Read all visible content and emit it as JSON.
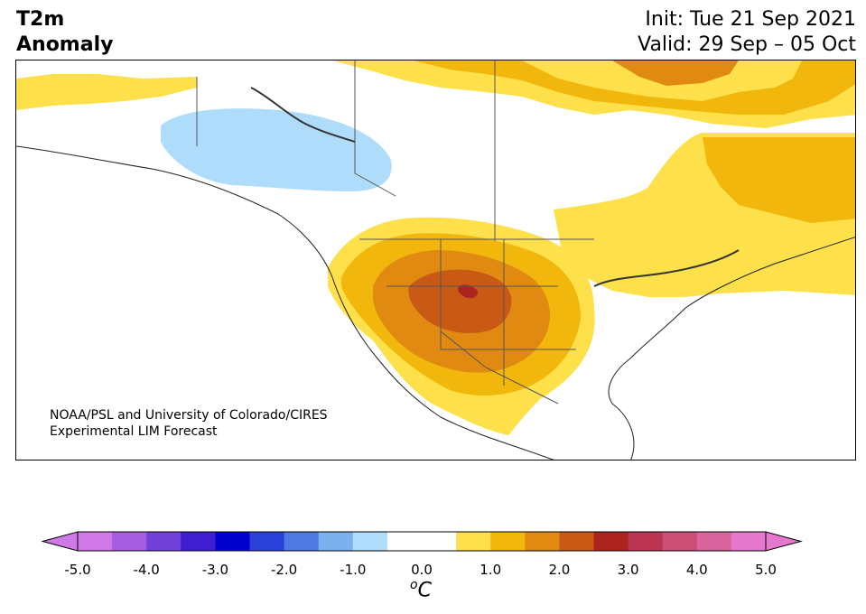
{
  "title_left": "T2m\nAnomaly",
  "init_line": "Init: Tue 21 Sep 2021",
  "valid_line": "Valid: 29 Sep – 05 Oct",
  "credit_line1": "NOAA/PSL and University of Colorado/CIRES",
  "credit_line2": "Experimental LIM Forecast",
  "colorbar": {
    "unit_base": "C",
    "unit_sup": "o",
    "ticks": [
      "-5.0",
      "-4.0",
      "-3.0",
      "-2.0",
      "-1.0",
      "0.0",
      "1.0",
      "2.0",
      "3.0",
      "4.0",
      "5.0"
    ],
    "colors": [
      "#d079e6",
      "#a55ce0",
      "#7040d8",
      "#3d1fd0",
      "#0000cc",
      "#2a40d8",
      "#4f78e2",
      "#7bb2ee",
      "#aedcfa",
      "#ffffff",
      "#ffffff",
      "#fde04a",
      "#f2b70c",
      "#e08a12",
      "#c85a16",
      "#ac2320",
      "#bc3654",
      "#cc4f77",
      "#da649e",
      "#e577cc"
    ],
    "under_color": "#d079e6",
    "over_color": "#e577cc"
  },
  "map_colors": {
    "anom_0_5": "#fde04a",
    "anom_1_0": "#f2b70c",
    "anom_1_5": "#e08a12",
    "anom_2_0": "#c85a16",
    "anom_2_5": "#ac2320",
    "anom_neg_0_5": "#aedcfa"
  }
}
